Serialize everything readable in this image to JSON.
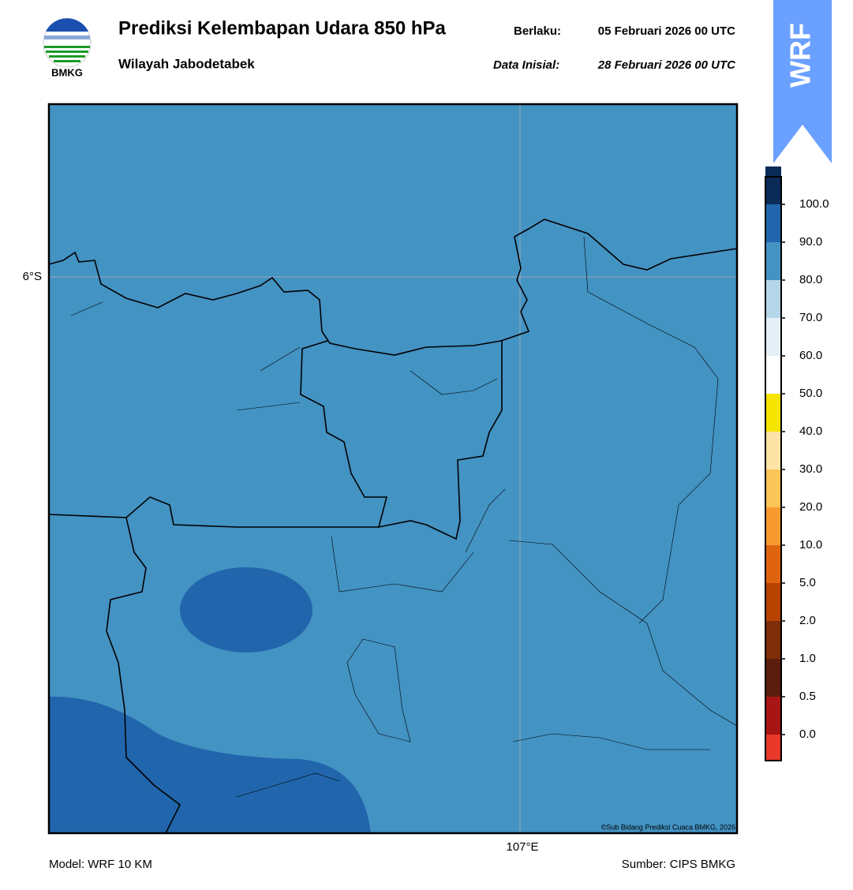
{
  "header": {
    "title": "Prediksi Kelembapan Udara 850 hPa",
    "subtitle": "Wilayah Jabodetabek",
    "valid_label": "Berlaku:",
    "valid_time": "05 Februari 2026 00 UTC",
    "init_label": "Data Inisial:",
    "init_time": "28 Februari 2026 00 UTC",
    "logo_text": "BMKG",
    "badge": "WRF"
  },
  "map": {
    "lat_label": "6°S",
    "lon_label": "107°E",
    "copyright": "©Sub Bidang Prediksi Cuaca BMKG, 2026",
    "base_color": "#4393c3",
    "blob_color": "#2166ac"
  },
  "colorbar": {
    "labels": [
      "0.0",
      "0.5",
      "1.0",
      "2.0",
      "5.0",
      "10.0",
      "20.0",
      "30.0",
      "40.0",
      "50.0",
      "60.0",
      "70.0",
      "80.0",
      "90.0",
      "100.0"
    ],
    "colors": [
      "#e8392a",
      "#a81515",
      "#5a1c0c",
      "#7e2e08",
      "#b84200",
      "#e0640e",
      "#f79a30",
      "#fcc557",
      "#fde3a6",
      "#f5e300",
      "#ffffff",
      "#e4eff7",
      "#b5d6e9",
      "#4393c3",
      "#2166ac",
      "#0a2b58",
      "#2d0a4a"
    ]
  },
  "footer": {
    "model": "Model: WRF 10 KM",
    "source": "Sumber: CIPS BMKG"
  }
}
